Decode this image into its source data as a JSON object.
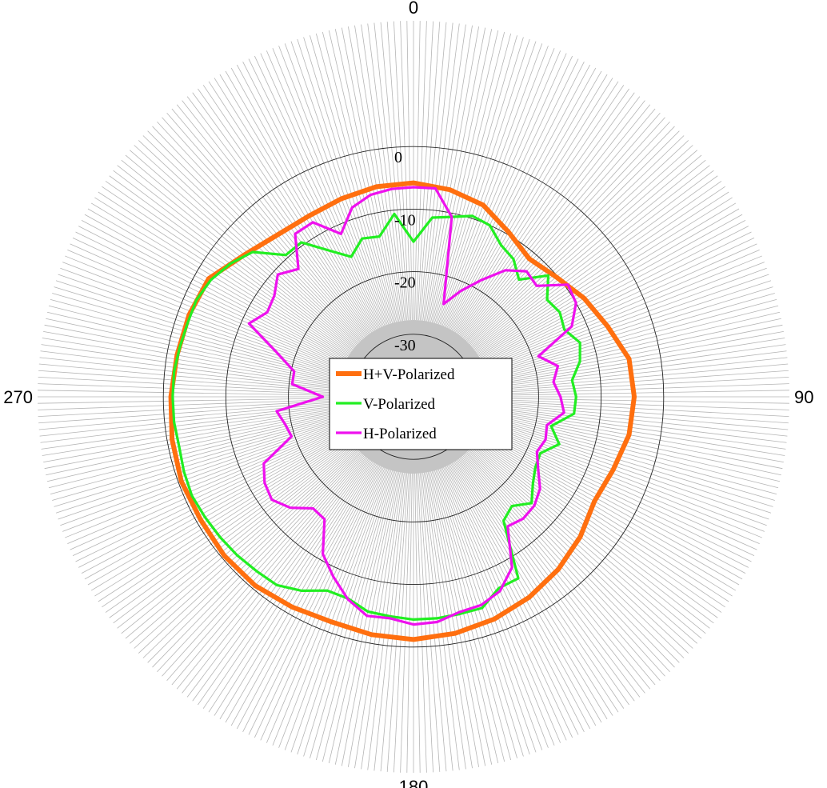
{
  "chart_data": {
    "type": "line",
    "projection": "polar",
    "theta_zero": "top",
    "theta_direction": "clockwise",
    "angle_tick_labels": [
      "0",
      "90",
      "180",
      "270"
    ],
    "angle_ticks_deg": [
      0,
      90,
      180,
      270
    ],
    "radial_tick_labels": [
      "0",
      "-10",
      "-20",
      "-30"
    ],
    "radial_ticks": [
      0,
      -10,
      -20,
      -30
    ],
    "rlim": [
      -40,
      10
    ],
    "legend_position": "center",
    "grid": true,
    "series": [
      {
        "name": "H+V-Polarized",
        "color": "#ff6f0f",
        "theta": [
          0,
          10,
          20,
          30,
          40,
          50,
          60,
          70,
          80,
          90,
          100,
          110,
          120,
          130,
          140,
          150,
          160,
          170,
          180,
          190,
          200,
          210,
          220,
          230,
          240,
          250,
          260,
          270,
          280,
          290,
          300,
          310,
          320,
          330,
          340,
          350
        ],
        "r": [
          -5.8,
          -6.4,
          -7.4,
          -9.6,
          -11.2,
          -10.2,
          -8.5,
          -7.0,
          -5.0,
          -4.7,
          -5.0,
          -6.0,
          -6.6,
          -5.2,
          -4.0,
          -3.0,
          -2.2,
          -1.6,
          -1.2,
          -1.4,
          -1.7,
          -1.2,
          -0.6,
          -0.5,
          -0.7,
          -0.5,
          -0.8,
          -1.2,
          -1.6,
          -1.8,
          -2.2,
          -4.7,
          -6.2,
          -6.6,
          -6.3,
          -5.9
        ]
      },
      {
        "name": "V-Polarized",
        "color": "#22ee22",
        "theta": [
          0,
          6,
          12,
          18,
          24,
          30,
          36,
          42,
          48,
          54,
          60,
          66,
          72,
          78,
          84,
          90,
          96,
          102,
          108,
          114,
          120,
          126,
          132,
          138,
          144,
          150,
          156,
          162,
          168,
          174,
          180,
          186,
          192,
          198,
          204,
          210,
          216,
          222,
          228,
          234,
          240,
          246,
          252,
          258,
          264,
          270,
          276,
          282,
          288,
          294,
          300,
          306,
          312,
          318,
          324,
          330,
          336,
          342,
          348,
          354
        ],
        "r": [
          -15.2,
          -11.2,
          -10.6,
          -9.6,
          -10.0,
          -12.0,
          -12.8,
          -14.8,
          -11.0,
          -13.6,
          -13.0,
          -13.6,
          -12.0,
          -12.8,
          -14.5,
          -14.0,
          -14.2,
          -17.5,
          -15.5,
          -17.8,
          -17.5,
          -16.4,
          -14.6,
          -16.5,
          -15.5,
          -6.5,
          -6.5,
          -4.5,
          -4.5,
          -4.4,
          -4.4,
          -4.7,
          -4.9,
          -6.1,
          -6.1,
          -4.2,
          -2.8,
          -2.5,
          -2.1,
          -1.8,
          -1.5,
          -1.2,
          -1.4,
          -1.7,
          -1.5,
          -1.5,
          -1.5,
          -1.8,
          -2.0,
          -2.0,
          -2.6,
          -3.8,
          -5.4,
          -9.5,
          -9.5,
          -13.0,
          -15.5,
          -13.4,
          -13.8,
          -10.6
        ]
      },
      {
        "name": "H-Polarized",
        "color": "#ee11ee",
        "theta": [
          0,
          6,
          12,
          18,
          24,
          30,
          36,
          42,
          48,
          54,
          60,
          66,
          72,
          78,
          84,
          90,
          96,
          102,
          108,
          114,
          120,
          126,
          132,
          138,
          144,
          150,
          156,
          162,
          168,
          174,
          180,
          186,
          192,
          198,
          204,
          210,
          216,
          222,
          228,
          234,
          240,
          246,
          252,
          258,
          264,
          270,
          276,
          282,
          288,
          294,
          300,
          306,
          312,
          318,
          324,
          330,
          336,
          342,
          348,
          354
        ],
        "r": [
          -6.5,
          -6.5,
          -10.6,
          -24.4,
          -21.5,
          -18.5,
          -15.0,
          -13.0,
          -13.5,
          -9.5,
          -10.0,
          -12.3,
          -19.0,
          -16.4,
          -17.5,
          -16.5,
          -15.8,
          -18.2,
          -17.8,
          -18.4,
          -17.0,
          -15.0,
          -14.0,
          -13.8,
          -14.4,
          -8.5,
          -6.0,
          -5.0,
          -4.8,
          -3.8,
          -3.6,
          -4.4,
          -4.2,
          -6.0,
          -8.5,
          -11.0,
          -15.8,
          -16.0,
          -13.5,
          -12.0,
          -12.5,
          -13.8,
          -19.5,
          -19.0,
          -18.0,
          -25.5,
          -20.5,
          -20.5,
          -17.0,
          -11.2,
          -13.0,
          -12.5,
          -10.8,
          -12.5,
          -7.8,
          -7.8,
          -11.5,
          -8.2,
          -7.0,
          -6.6
        ]
      }
    ]
  }
}
